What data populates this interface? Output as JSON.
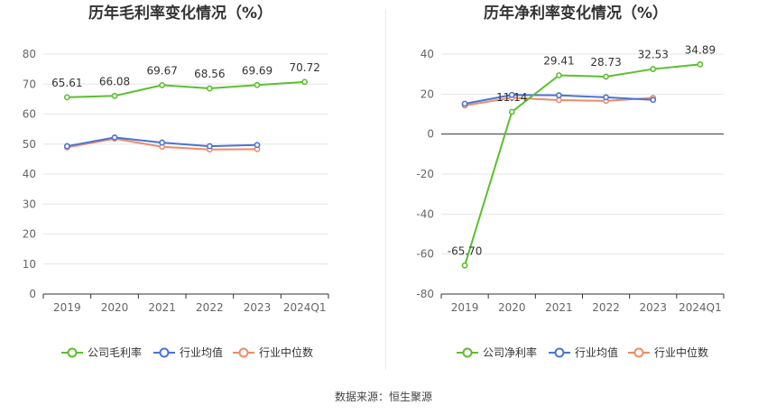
{
  "source_text": "数据来源：恒生聚源",
  "colors": {
    "company": "#5bbf2d",
    "avg": "#4a74d6",
    "median": "#f08a66",
    "grid": "#e6e6e6",
    "axis": "#333333",
    "text": "#666666"
  },
  "chart_data": [
    {
      "type": "line",
      "title": "历年毛利率变化情况（%）",
      "categories": [
        "2019",
        "2020",
        "2021",
        "2022",
        "2023",
        "2024Q1"
      ],
      "ylim": [
        0,
        80
      ],
      "yticks": [
        0,
        10,
        20,
        30,
        40,
        50,
        60,
        70,
        80
      ],
      "grid": true,
      "legend_position": "bottom",
      "series": [
        {
          "name": "公司毛利率",
          "role": "company",
          "values": [
            65.61,
            66.08,
            69.67,
            68.56,
            69.69,
            70.72
          ],
          "labels": [
            "65.61",
            "66.08",
            "69.67",
            "68.56",
            "69.69",
            "70.72"
          ]
        },
        {
          "name": "行业均值",
          "role": "avg",
          "values": [
            49.3,
            52.2,
            50.5,
            49.3,
            49.7,
            null
          ]
        },
        {
          "name": "行业中位数",
          "role": "median",
          "values": [
            48.9,
            51.8,
            49.1,
            48.2,
            48.3,
            null
          ]
        }
      ]
    },
    {
      "type": "line",
      "title": "历年净利率变化情况（%）",
      "categories": [
        "2019",
        "2020",
        "2021",
        "2022",
        "2023",
        "2024Q1"
      ],
      "ylim": [
        -80,
        40
      ],
      "yticks": [
        -80,
        -60,
        -40,
        -20,
        0,
        20,
        40
      ],
      "grid": true,
      "legend_position": "bottom",
      "series": [
        {
          "name": "公司净利率",
          "role": "company",
          "values": [
            -65.7,
            11.14,
            29.41,
            28.73,
            32.53,
            34.89
          ],
          "labels": [
            "-65.70",
            "11.14",
            "29.41",
            "28.73",
            "32.53",
            "34.89"
          ]
        },
        {
          "name": "行业均值",
          "role": "avg",
          "values": [
            15.2,
            19.6,
            19.4,
            18.4,
            17.1,
            null
          ]
        },
        {
          "name": "行业中位数",
          "role": "median",
          "values": [
            14.3,
            18.2,
            17.0,
            16.6,
            18.1,
            null
          ]
        }
      ]
    }
  ]
}
